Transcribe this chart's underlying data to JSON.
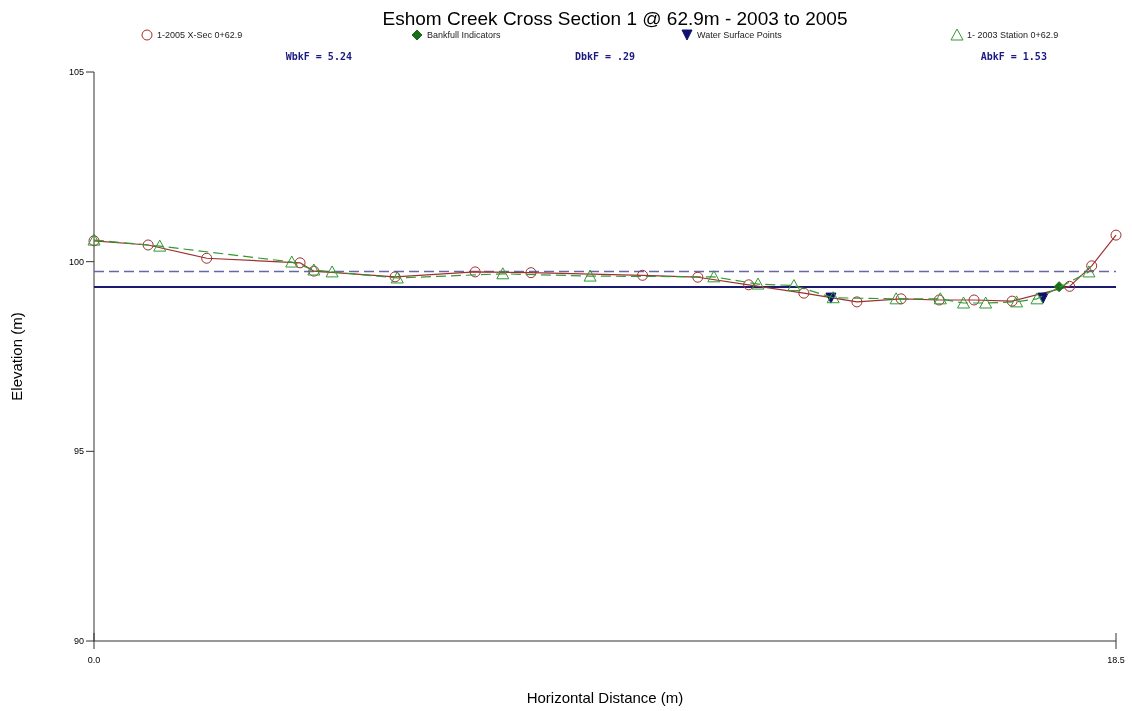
{
  "chart_data": {
    "type": "line",
    "title": "Eshom Creek Cross Section 1 @ 62.9m - 2003 to 2005",
    "xlabel": "Horizontal Distance (m)",
    "ylabel": "Elevation (m)",
    "annotations": [
      "WbkF = 5.24",
      "DbkF = .29",
      "AbkF = 1.53"
    ],
    "xlim": [
      0,
      18.5
    ],
    "xticks": [
      {
        "value": 0,
        "label": "0.0"
      },
      18.5
    ],
    "ylim": [
      90,
      105
    ],
    "yticks": [
      90,
      95,
      100,
      105
    ],
    "grid": false,
    "legend": "top",
    "series": [
      {
        "name": "1-2005 X-Sec 0+62.9",
        "color": "#a03030",
        "marker": "circle",
        "line_style": "solid",
        "x": [
          0,
          0.98,
          2.04,
          3.73,
          3.98,
          5.45,
          6.9,
          7.91,
          9.93,
          10.93,
          11.85,
          12.85,
          13.81,
          14.61,
          15.3,
          15.93,
          16.62,
          17.66,
          18.06,
          18.5
        ],
        "values": [
          100.55,
          100.44,
          100.09,
          99.97,
          99.75,
          99.6,
          99.73,
          99.71,
          99.64,
          99.59,
          99.39,
          99.17,
          98.94,
          99.02,
          98.99,
          98.99,
          98.96,
          99.35,
          99.89,
          100.7
        ]
      },
      {
        "name": "Bankfull Indicators",
        "type": "scatter",
        "color": "#1a6e1a",
        "marker": "diamond",
        "x": [
          17.47
        ],
        "values": [
          99.34
        ]
      },
      {
        "name": "Water Surface Points",
        "type": "scatter",
        "color": "#10106e",
        "marker": "triangle-down",
        "x": [
          13.34,
          17.18
        ],
        "values": [
          99.04,
          99.04
        ]
      },
      {
        "name": "1- 2003 Station 0+62.9",
        "color": "#339933",
        "marker": "triangle",
        "line_style": "dashed",
        "x": [
          0,
          1.19,
          3.58,
          3.98,
          4.31,
          5.49,
          7.4,
          8.98,
          11.22,
          12.02,
          12.67,
          13.38,
          14.52,
          15.32,
          15.74,
          16.14,
          16.7,
          17.07,
          18.01
        ],
        "values": [
          100.57,
          100.41,
          99.99,
          99.78,
          99.73,
          99.57,
          99.68,
          99.62,
          99.6,
          99.41,
          99.37,
          99.05,
          99.02,
          99.02,
          98.91,
          98.91,
          98.94,
          99.02,
          99.73
        ]
      }
    ],
    "ref_lines": [
      {
        "axis": "y",
        "value": 99.74,
        "color": "#6666aa",
        "line_style": "dashed"
      },
      {
        "axis": "y",
        "value": 99.33,
        "color": "#1a1a6e",
        "line_style": "solid"
      }
    ]
  }
}
